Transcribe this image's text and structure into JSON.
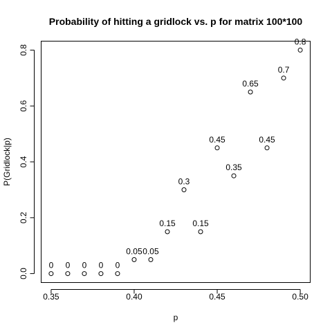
{
  "chart_data": {
    "type": "scatter",
    "title": "Probability of hitting a gridlock vs. p for matrix 100*100",
    "xlabel": "p",
    "ylabel": "P(Gridlock|p)",
    "x": [
      0.35,
      0.36,
      0.37,
      0.38,
      0.39,
      0.4,
      0.41,
      0.42,
      0.43,
      0.44,
      0.45,
      0.46,
      0.47,
      0.48,
      0.49,
      0.5
    ],
    "y": [
      0,
      0,
      0,
      0,
      0,
      0.05,
      0.05,
      0.15,
      0.3,
      0.15,
      0.45,
      0.35,
      0.65,
      0.45,
      0.7,
      0.8
    ],
    "point_labels": [
      "0",
      "0",
      "0",
      "0",
      "0",
      "0.05",
      "0.05",
      "0.15",
      "0.3",
      "0.15",
      "0.45",
      "0.35",
      "0.65",
      "0.45",
      "0.7",
      "0.8"
    ],
    "xlim": [
      0.344,
      0.506
    ],
    "ylim": [
      -0.032,
      0.832
    ],
    "x_ticks": [
      0.35,
      0.4,
      0.45,
      0.5
    ],
    "x_tick_labels": [
      "0.35",
      "0.40",
      "0.45",
      "0.50"
    ],
    "y_ticks": [
      0.0,
      0.2,
      0.4,
      0.6,
      0.8
    ],
    "y_tick_labels": [
      "0.0",
      "0.2",
      "0.4",
      "0.6",
      "0.8"
    ],
    "grid": false,
    "marker": "open-circle",
    "colors": {
      "foreground": "#000000",
      "background": "#ffffff"
    }
  }
}
